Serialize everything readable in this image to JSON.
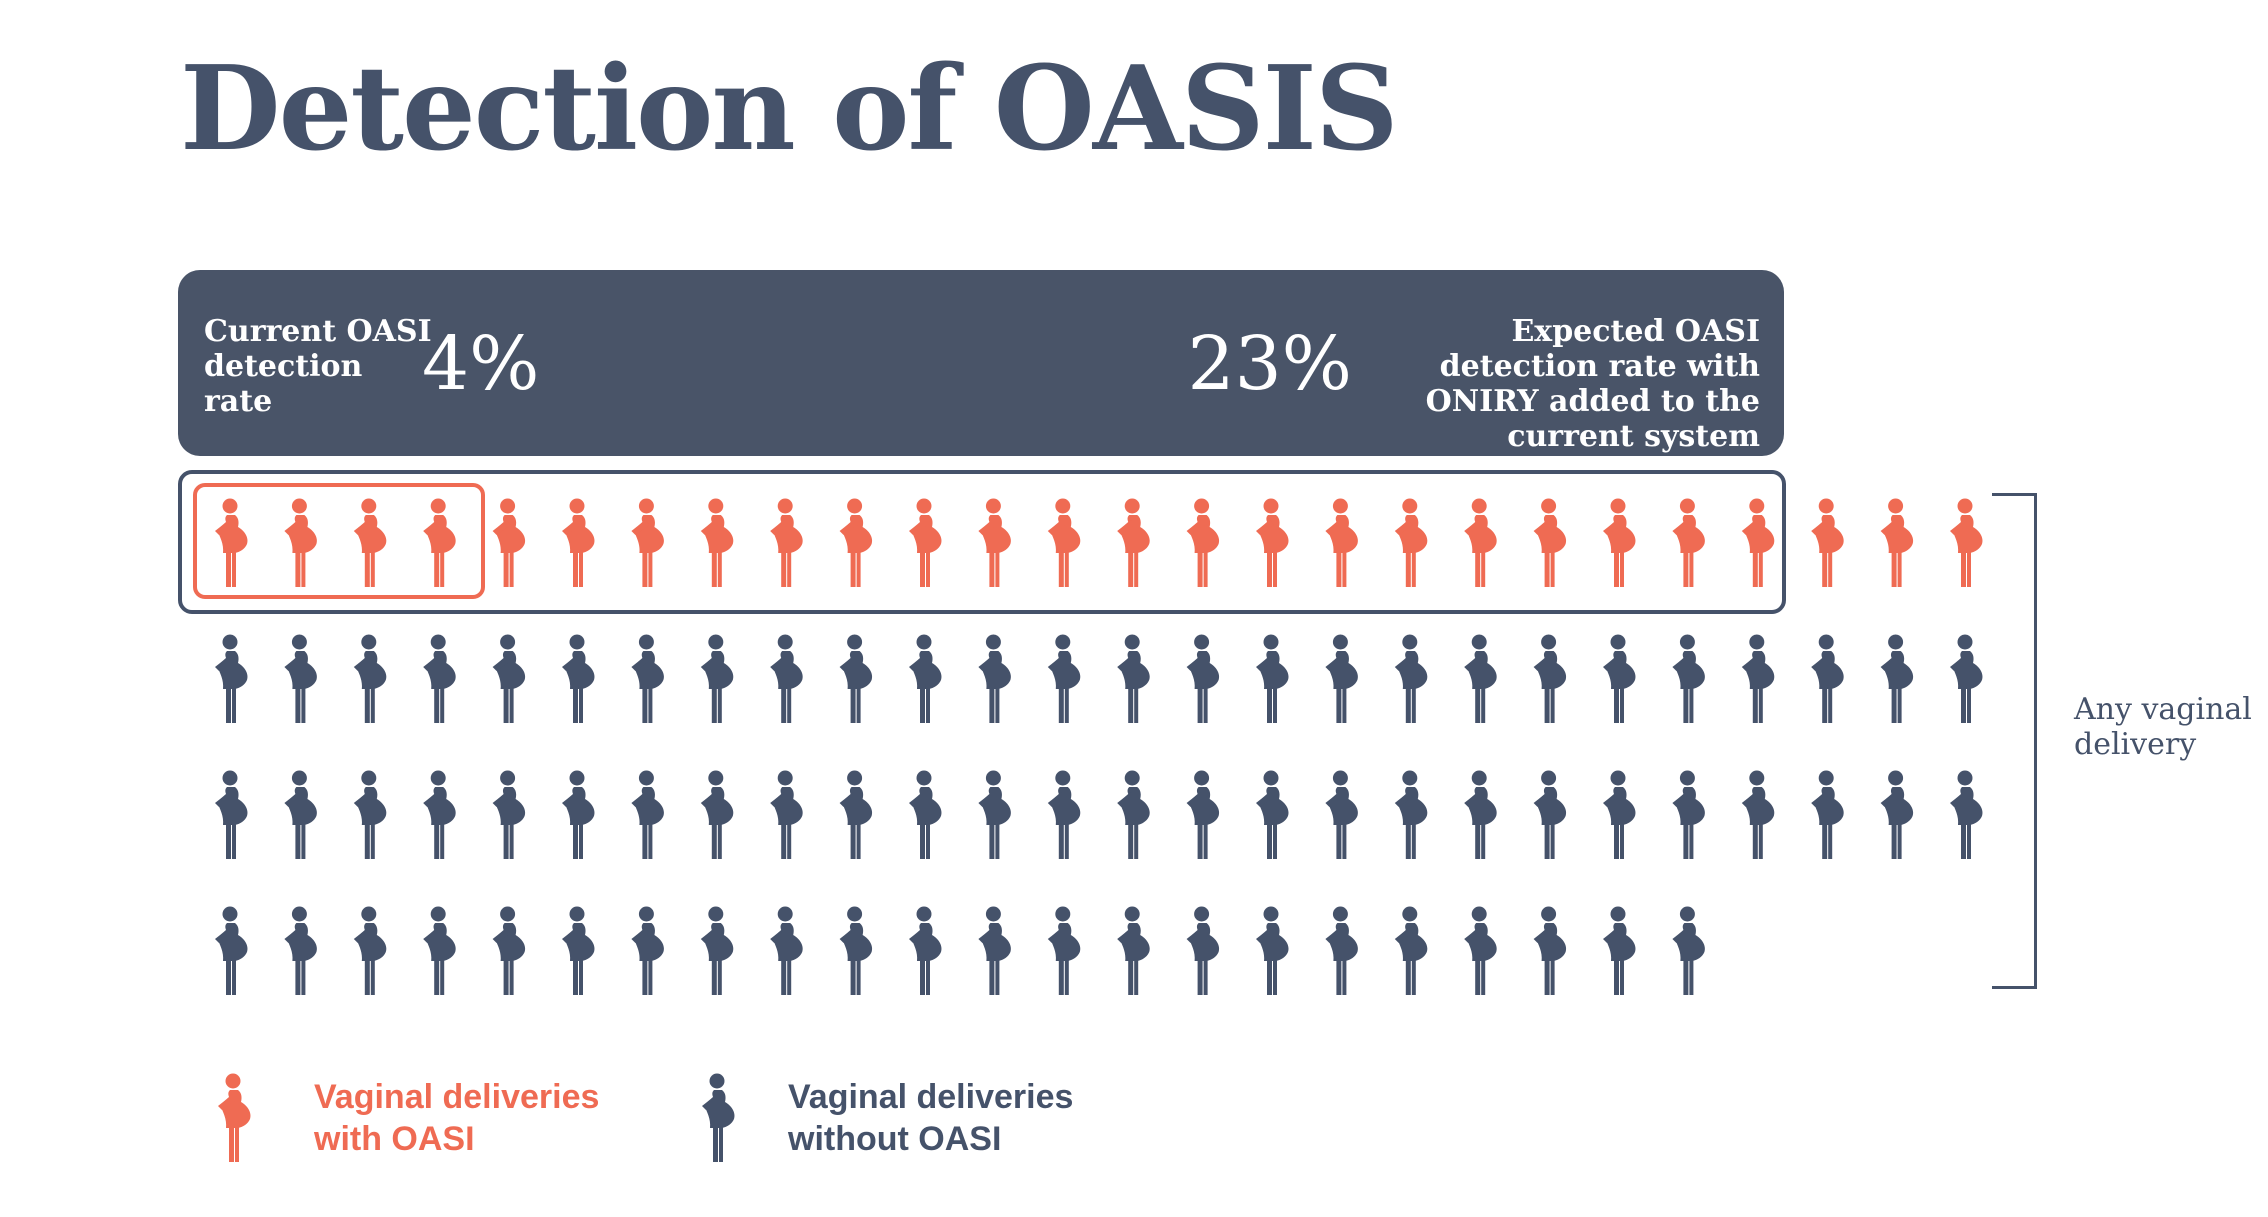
{
  "title": "Detection of OASIS",
  "banner": {
    "current_label": "Current OASI detection rate",
    "current_value": "4%",
    "expected_value": "23%",
    "expected_label": "Expected OASI detection rate with ONIRY added to the current system"
  },
  "figures": {
    "rows": [
      26,
      26,
      26,
      22
    ],
    "oasi_count": 26,
    "current_detected_count": 4,
    "expected_detected_count": 23
  },
  "bracket_label": "Any vaginal delivery",
  "legend": {
    "oasi": "Vaginal deliveries\nwith OASI",
    "no_oasi": "Vaginal deliveries\nwithout OASI"
  },
  "colors": {
    "oasi": "#ef6b53",
    "no_oasi": "#45526a",
    "banner": "#495468"
  },
  "icons": {
    "figure": "pregnant-woman-icon"
  }
}
